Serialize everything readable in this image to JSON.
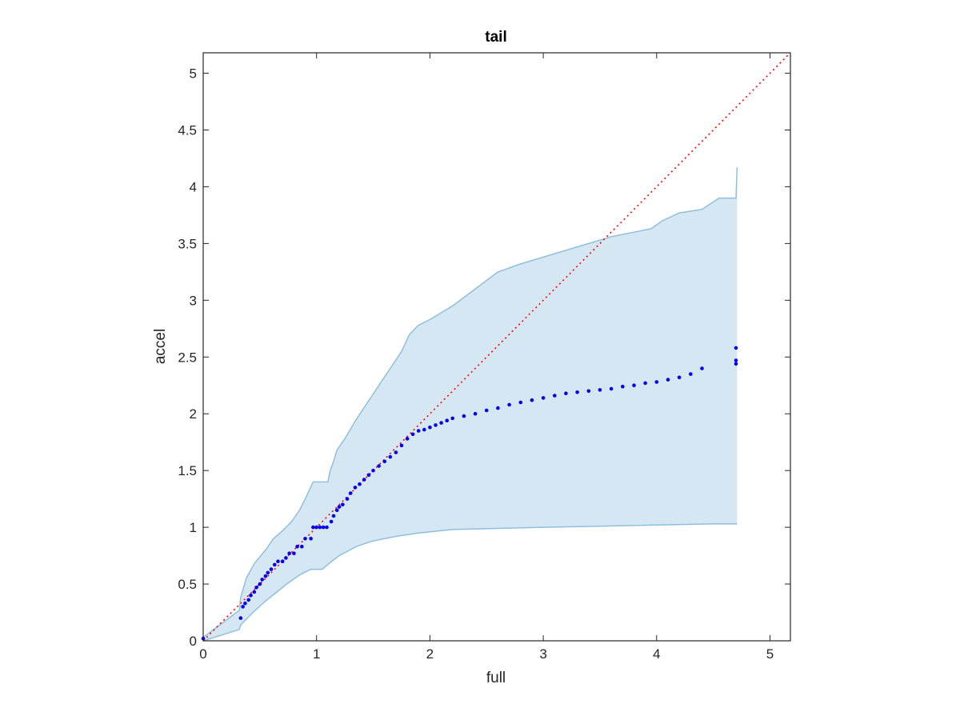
{
  "chart_data": {
    "type": "scatter",
    "title": "tail",
    "xlabel": "full",
    "ylabel": "accel",
    "xlim": [
      0,
      5.18
    ],
    "ylim": [
      0,
      5.18
    ],
    "xticks": [
      0,
      1,
      2,
      3,
      4,
      5
    ],
    "yticks": [
      0,
      0.5,
      1,
      1.5,
      2,
      2.5,
      3,
      3.5,
      4,
      4.5,
      5
    ],
    "xtick_labels": [
      "0",
      "1",
      "2",
      "3",
      "4",
      "5"
    ],
    "ytick_labels": [
      "0",
      "0.5",
      "1",
      "1.5",
      "2",
      "2.5",
      "3",
      "3.5",
      "4",
      "4.5",
      "5"
    ],
    "grid": false,
    "colors": {
      "points": "#0000ee",
      "band_fill": "#d6e7f4",
      "band_edge": "#8fbfdd",
      "reference": "#ff0000",
      "axes": "#262626"
    },
    "reference_line": {
      "x": [
        0,
        5.18
      ],
      "y": [
        0,
        5.18
      ],
      "style": "dotted"
    },
    "band_upper": {
      "x": [
        0,
        0.32,
        0.33,
        0.38,
        0.45,
        0.55,
        0.62,
        0.7,
        0.78,
        0.85,
        0.9,
        0.97,
        1.02,
        1.1,
        1.12,
        1.15,
        1.18,
        1.25,
        1.35,
        1.45,
        1.55,
        1.65,
        1.75,
        1.82,
        1.9,
        2.0,
        2.2,
        2.4,
        2.6,
        2.8,
        3.0,
        3.2,
        3.4,
        3.6,
        3.8,
        3.95,
        4.05,
        4.2,
        4.4,
        4.55,
        4.7,
        4.71
      ],
      "y": [
        0.03,
        0.27,
        0.38,
        0.55,
        0.68,
        0.8,
        0.9,
        0.97,
        1.05,
        1.15,
        1.25,
        1.4,
        1.4,
        1.4,
        1.5,
        1.58,
        1.68,
        1.78,
        1.95,
        2.1,
        2.25,
        2.4,
        2.55,
        2.7,
        2.78,
        2.83,
        2.95,
        3.1,
        3.25,
        3.32,
        3.38,
        3.44,
        3.5,
        3.56,
        3.6,
        3.63,
        3.7,
        3.77,
        3.8,
        3.9,
        3.9,
        4.17
      ]
    },
    "band_lower": {
      "x": [
        0,
        0.32,
        0.33,
        0.45,
        0.55,
        0.65,
        0.75,
        0.85,
        0.95,
        1.0,
        1.05,
        1.12,
        1.2,
        1.35,
        1.5,
        1.7,
        1.9,
        2.2,
        2.6,
        3.0,
        3.5,
        4.0,
        4.5,
        4.71
      ],
      "y": [
        0,
        0.1,
        0.14,
        0.26,
        0.35,
        0.43,
        0.51,
        0.58,
        0.63,
        0.63,
        0.63,
        0.69,
        0.75,
        0.83,
        0.88,
        0.92,
        0.95,
        0.98,
        0.99,
        1.0,
        1.01,
        1.02,
        1.03,
        1.03
      ]
    },
    "series": [
      {
        "x": [
          0,
          0.33,
          0.35,
          0.37,
          0.4,
          0.42,
          0.45,
          0.47,
          0.5,
          0.52,
          0.55,
          0.57,
          0.6,
          0.63,
          0.66,
          0.7,
          0.73,
          0.76,
          0.8,
          0.83,
          0.87,
          0.9,
          0.95,
          0.97,
          1.0,
          1.03,
          1.06,
          1.09,
          1.13,
          1.15,
          1.18,
          1.2,
          1.23,
          1.27,
          1.3,
          1.34,
          1.38,
          1.42,
          1.46,
          1.5,
          1.55,
          1.6,
          1.65,
          1.7,
          1.75,
          1.8,
          1.85,
          1.9,
          1.95,
          2.0,
          2.05,
          2.1,
          2.15,
          2.2,
          2.3,
          2.4,
          2.5,
          2.6,
          2.7,
          2.8,
          2.9,
          3.0,
          3.1,
          3.2,
          3.3,
          3.4,
          3.5,
          3.6,
          3.7,
          3.8,
          3.9,
          4.0,
          4.1,
          4.2,
          4.3,
          4.4,
          4.7,
          4.7,
          4.7
        ],
        "y": [
          0.02,
          0.2,
          0.3,
          0.33,
          0.36,
          0.4,
          0.43,
          0.47,
          0.5,
          0.54,
          0.57,
          0.6,
          0.63,
          0.67,
          0.7,
          0.7,
          0.73,
          0.77,
          0.77,
          0.83,
          0.83,
          0.9,
          0.9,
          1.0,
          1.0,
          1.0,
          1.0,
          1.0,
          1.05,
          1.1,
          1.15,
          1.18,
          1.2,
          1.25,
          1.3,
          1.35,
          1.38,
          1.42,
          1.46,
          1.5,
          1.54,
          1.58,
          1.62,
          1.66,
          1.72,
          1.78,
          1.82,
          1.85,
          1.86,
          1.88,
          1.9,
          1.92,
          1.94,
          1.96,
          1.98,
          2.0,
          2.03,
          2.05,
          2.08,
          2.1,
          2.12,
          2.14,
          2.16,
          2.18,
          2.19,
          2.2,
          2.21,
          2.22,
          2.24,
          2.25,
          2.27,
          2.28,
          2.3,
          2.32,
          2.35,
          2.4,
          2.44,
          2.47,
          2.58
        ]
      }
    ]
  }
}
